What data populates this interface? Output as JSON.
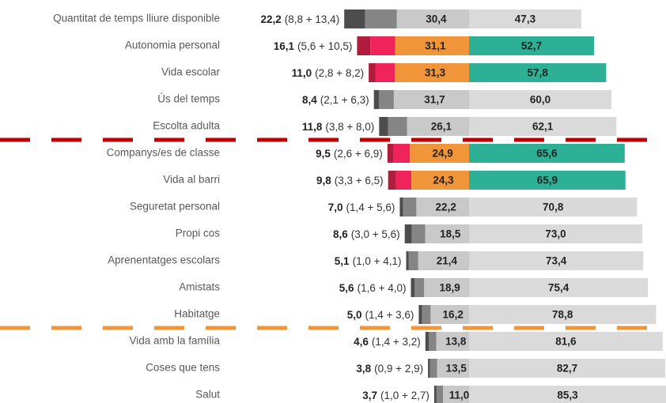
{
  "chart_data": {
    "type": "diverging_bar",
    "categories": [
      "Quantitat de temps lliure disponible",
      "Autonomia personal",
      "Vida escolar",
      "Ús del temps",
      "Escolta adulta",
      "Companys/es de classe",
      "Vida al barri",
      "Seguretat personal",
      "Propi cos",
      "Aprenentatges escolars",
      "Amistats",
      "Habitatge",
      "Vida amb la família",
      "Coses que tens",
      "Salut"
    ],
    "totals": [
      22.2,
      16.1,
      11.0,
      8.4,
      11.8,
      9.5,
      9.8,
      7.0,
      8.6,
      5.1,
      5.6,
      5.0,
      4.6,
      3.8,
      3.7
    ],
    "total_labels": [
      "22,2",
      "16,1",
      "11,0",
      "8,4",
      "11,8",
      "9,5",
      "9,8",
      "7,0",
      "8,6",
      "5,1",
      "5,6",
      "5,0",
      "4,6",
      "3,8",
      "3,7"
    ],
    "breakdown_labels": [
      "(8,8 + 13,4)",
      "(5,6 + 10,5)",
      "(2,8 + 8,2)",
      "(2,1 + 6,3)",
      "(3,8 + 8,0)",
      "(2,6 + 6,9)",
      "(3,3 + 6,5)",
      "(1,4 + 5,6)",
      "(3,0 + 5,6)",
      "(1,0 + 4,1)",
      "(1,6 + 4,0)",
      "(1,4 + 3,6)",
      "(1,4 + 3,2)",
      "(0,9 + 2,9)",
      "(1,0 + 2,7)"
    ],
    "highlight": [
      false,
      true,
      true,
      false,
      false,
      true,
      true,
      false,
      false,
      false,
      false,
      false,
      false,
      false,
      false
    ],
    "series": [
      {
        "color": "#4d4d4d",
        "highlight_color": "#b01c3c",
        "values": [
          8.8,
          5.6,
          2.8,
          2.1,
          3.8,
          2.6,
          3.3,
          1.4,
          3.0,
          1.0,
          1.6,
          1.4,
          1.4,
          0.9,
          1.0
        ]
      },
      {
        "color": "#858585",
        "highlight_color": "#f0245a",
        "values": [
          13.4,
          10.5,
          8.2,
          6.3,
          8.0,
          6.9,
          6.5,
          5.6,
          5.6,
          4.1,
          4.0,
          3.6,
          3.2,
          2.9,
          2.7
        ]
      },
      {
        "color": "#c9c9c9",
        "highlight_color": "#f0953a",
        "values": [
          30.4,
          31.1,
          31.3,
          31.7,
          26.1,
          24.9,
          24.3,
          22.2,
          18.5,
          21.4,
          18.9,
          16.2,
          13.8,
          13.5,
          11.0
        ],
        "value_labels": [
          "30,4",
          "31,1",
          "31,3",
          "31,7",
          "26,1",
          "24,9",
          "24,3",
          "22,2",
          "18,5",
          "21,4",
          "18,9",
          "16,2",
          "13,8",
          "13,5",
          "11,0"
        ]
      },
      {
        "color": "#dadada",
        "highlight_color": "#2db095",
        "values": [
          47.3,
          52.7,
          57.8,
          60.0,
          62.1,
          65.6,
          65.9,
          70.8,
          73.0,
          73.4,
          75.4,
          78.8,
          81.6,
          82.7,
          85.3
        ],
        "value_labels": [
          "47,3",
          "52,7",
          "57,8",
          "60,0",
          "62,1",
          "65,6",
          "65,9",
          "70,8",
          "73,0",
          "73,4",
          "75,4",
          "78,8",
          "81,6",
          "82,7",
          "85,3"
        ]
      }
    ]
  }
}
